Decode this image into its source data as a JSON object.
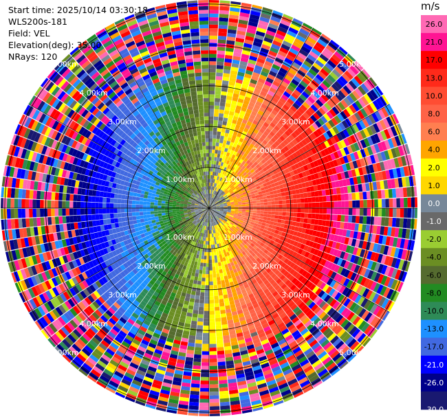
{
  "header": {
    "start_time": "Start time: 2025/10/14 03:30:18",
    "instrument": "WLS200s-181",
    "field": "Field: VEL",
    "elevation": "Elevation(deg): 35.00",
    "nrays": "NRays: 120"
  },
  "chart_data": {
    "type": "heatmap",
    "projection": "polar-ppi",
    "field": "VEL",
    "units": "m/s",
    "nrays": 120,
    "elevation_deg": 35.0,
    "range_rings_km": [
      1,
      2,
      3,
      4,
      5
    ],
    "range_ring_labels": [
      "1.00km",
      "2.00km",
      "3.00km",
      "4.00km",
      "5.00km"
    ],
    "max_range_km": 5.1,
    "pattern": {
      "positive_velocity_bearing_deg": 95,
      "negative_velocity_bearing_deg": 240,
      "noise_beyond_km": 3.4
    },
    "colorbar": {
      "unit": "m/s",
      "ticks": [
        "26.0",
        "21.0",
        "17.0",
        "13.0",
        "10.0",
        "8.0",
        "6.0",
        "4.0",
        "2.0",
        "1.0",
        "0.0",
        "-1.0",
        "-2.0",
        "-4.0",
        "-6.0",
        "-8.0",
        "-10.0",
        "-13.0",
        "-17.0",
        "-21.0",
        "-26.0",
        "-30.0"
      ],
      "bins": [
        {
          "min": 26,
          "max": 30,
          "color": "#ff69b4"
        },
        {
          "min": 21,
          "max": 26,
          "color": "#ff1493"
        },
        {
          "min": 17,
          "max": 21,
          "color": "#ff0000"
        },
        {
          "min": 13,
          "max": 17,
          "color": "#ff2a1a"
        },
        {
          "min": 10,
          "max": 13,
          "color": "#ff4d33"
        },
        {
          "min": 8,
          "max": 10,
          "color": "#ff6347"
        },
        {
          "min": 6,
          "max": 8,
          "color": "#ff7f50"
        },
        {
          "min": 4,
          "max": 6,
          "color": "#ffa500"
        },
        {
          "min": 2,
          "max": 4,
          "color": "#ffff00"
        },
        {
          "min": 1,
          "max": 2,
          "color": "#ffd700"
        },
        {
          "min": 0,
          "max": 1,
          "color": "#778899"
        },
        {
          "min": -1,
          "max": 0,
          "color": "#696969"
        },
        {
          "min": -2,
          "max": -1,
          "color": "#9acd32"
        },
        {
          "min": -4,
          "max": -2,
          "color": "#6b8e23"
        },
        {
          "min": -6,
          "max": -4,
          "color": "#556b2f"
        },
        {
          "min": -8,
          "max": -6,
          "color": "#228b22"
        },
        {
          "min": -10,
          "max": -8,
          "color": "#2e8b57"
        },
        {
          "min": -13,
          "max": -10,
          "color": "#1e90ff"
        },
        {
          "min": -17,
          "max": -13,
          "color": "#4169e1"
        },
        {
          "min": -21,
          "max": -17,
          "color": "#0000ff"
        },
        {
          "min": -26,
          "max": -21,
          "color": "#00008b"
        },
        {
          "min": -30,
          "max": -26,
          "color": "#191970"
        }
      ]
    }
  }
}
